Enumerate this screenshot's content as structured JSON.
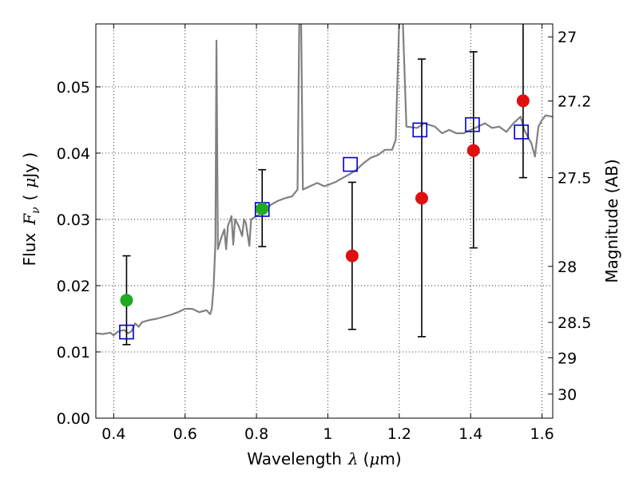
{
  "chart_data": {
    "type": "scatter",
    "xlabel": {
      "prefix": "Wavelength",
      "sym": "λ",
      "unit_open": "(",
      "unit_mu": "μ",
      "unit_rest": "m)"
    },
    "ylabel": {
      "prefix": "Flux",
      "sym": "F",
      "sub": "ν",
      "unit_open": "(",
      "unit_mu": "μ",
      "unit_rest": "Jy )"
    },
    "y2label": "Magnitude (AB)",
    "xlim": [
      0.35,
      1.63
    ],
    "ylim": [
      0.0,
      0.0595
    ],
    "grid": true,
    "xticks": [
      {
        "v": 0.4,
        "label": "0.4"
      },
      {
        "v": 0.6,
        "label": "0.6"
      },
      {
        "v": 0.8,
        "label": "0.8"
      },
      {
        "v": 1.0,
        "label": "1"
      },
      {
        "v": 1.2,
        "label": "1.2"
      },
      {
        "v": 1.4,
        "label": "1.4"
      },
      {
        "v": 1.6,
        "label": "1.6"
      }
    ],
    "yticks": [
      {
        "v": 0.0,
        "label": "0.00"
      },
      {
        "v": 0.01,
        "label": "0.01"
      },
      {
        "v": 0.02,
        "label": "0.02"
      },
      {
        "v": 0.03,
        "label": "0.03"
      },
      {
        "v": 0.04,
        "label": "0.04"
      },
      {
        "v": 0.05,
        "label": "0.05"
      }
    ],
    "y2ticks": [
      {
        "mag": 27,
        "label": "27"
      },
      {
        "mag": 27.2,
        "label": "27.2"
      },
      {
        "mag": 27.5,
        "label": "27.5"
      },
      {
        "mag": 28,
        "label": "28"
      },
      {
        "mag": 28.5,
        "label": "28.5"
      },
      {
        "mag": 29,
        "label": "29"
      },
      {
        "mag": 30,
        "label": "30"
      }
    ],
    "model_sed": [
      [
        0.35,
        0.0128
      ],
      [
        0.37,
        0.0127
      ],
      [
        0.39,
        0.0129
      ],
      [
        0.4,
        0.0125
      ],
      [
        0.41,
        0.013
      ],
      [
        0.42,
        0.0132
      ],
      [
        0.43,
        0.0133
      ],
      [
        0.44,
        0.0128
      ],
      [
        0.45,
        0.0131
      ],
      [
        0.46,
        0.0143
      ],
      [
        0.47,
        0.0138
      ],
      [
        0.48,
        0.0145
      ],
      [
        0.5,
        0.0148
      ],
      [
        0.52,
        0.015
      ],
      [
        0.54,
        0.0153
      ],
      [
        0.56,
        0.0156
      ],
      [
        0.58,
        0.016
      ],
      [
        0.6,
        0.0165
      ],
      [
        0.62,
        0.0165
      ],
      [
        0.64,
        0.016
      ],
      [
        0.66,
        0.0163
      ],
      [
        0.67,
        0.0157
      ],
      [
        0.675,
        0.0165
      ],
      [
        0.68,
        0.02
      ],
      [
        0.685,
        0.0265
      ],
      [
        0.688,
        0.057
      ],
      [
        0.692,
        0.0255
      ],
      [
        0.7,
        0.027
      ],
      [
        0.71,
        0.0285
      ],
      [
        0.715,
        0.0255
      ],
      [
        0.72,
        0.029
      ],
      [
        0.73,
        0.0305
      ],
      [
        0.735,
        0.0262
      ],
      [
        0.74,
        0.03
      ],
      [
        0.75,
        0.029
      ],
      [
        0.76,
        0.0275
      ],
      [
        0.765,
        0.03
      ],
      [
        0.77,
        0.0295
      ],
      [
        0.78,
        0.026
      ],
      [
        0.785,
        0.03
      ],
      [
        0.8,
        0.0305
      ],
      [
        0.82,
        0.0312
      ],
      [
        0.84,
        0.0322
      ],
      [
        0.86,
        0.0328
      ],
      [
        0.88,
        0.0332
      ],
      [
        0.9,
        0.0335
      ],
      [
        0.915,
        0.0345
      ],
      [
        0.92,
        0.06
      ],
      [
        0.925,
        0.06
      ],
      [
        0.93,
        0.0345
      ],
      [
        0.95,
        0.035
      ],
      [
        0.97,
        0.0355
      ],
      [
        0.99,
        0.035
      ],
      [
        1.0,
        0.0352
      ],
      [
        1.02,
        0.0356
      ],
      [
        1.04,
        0.0362
      ],
      [
        1.06,
        0.0368
      ],
      [
        1.08,
        0.0375
      ],
      [
        1.1,
        0.0385
      ],
      [
        1.12,
        0.0393
      ],
      [
        1.14,
        0.0397
      ],
      [
        1.16,
        0.0405
      ],
      [
        1.18,
        0.0405
      ],
      [
        1.19,
        0.042
      ],
      [
        1.2,
        0.06
      ],
      [
        1.21,
        0.06
      ],
      [
        1.22,
        0.044
      ],
      [
        1.25,
        0.0438
      ],
      [
        1.27,
        0.0445
      ],
      [
        1.3,
        0.044
      ],
      [
        1.32,
        0.043
      ],
      [
        1.34,
        0.0435
      ],
      [
        1.36,
        0.043
      ],
      [
        1.38,
        0.043
      ],
      [
        1.4,
        0.0435
      ],
      [
        1.42,
        0.044
      ],
      [
        1.44,
        0.0445
      ],
      [
        1.46,
        0.0438
      ],
      [
        1.48,
        0.044
      ],
      [
        1.5,
        0.0432
      ],
      [
        1.52,
        0.0445
      ],
      [
        1.54,
        0.0455
      ],
      [
        1.55,
        0.0435
      ],
      [
        1.56,
        0.0425
      ],
      [
        1.57,
        0.0415
      ],
      [
        1.58,
        0.0395
      ],
      [
        1.59,
        0.044
      ],
      [
        1.6,
        0.045
      ],
      [
        1.61,
        0.0457
      ],
      [
        1.63,
        0.0455
      ]
    ],
    "series": [
      {
        "marker": "square-open",
        "color": "#0000cc",
        "points": [
          [
            0.436,
            0.013
          ],
          [
            0.816,
            0.0315
          ],
          [
            1.063,
            0.0383
          ],
          [
            1.258,
            0.0435
          ],
          [
            1.405,
            0.0443
          ],
          [
            1.542,
            0.0432
          ]
        ]
      },
      {
        "marker": "circle",
        "color": "#22aa22",
        "points": [
          [
            0.436,
            0.0178,
            0.0111,
            0.0245
          ],
          [
            0.816,
            0.0316,
            0.0259,
            0.0375
          ]
        ]
      },
      {
        "marker": "circle",
        "color": "#e01010",
        "points": [
          [
            1.068,
            0.0245,
            0.0134,
            0.0356
          ],
          [
            1.263,
            0.0332,
            0.0123,
            0.0542
          ],
          [
            1.408,
            0.0404,
            0.0257,
            0.0553
          ],
          [
            1.547,
            0.0479,
            0.0363,
            0.0596
          ]
        ]
      }
    ],
    "colors": {
      "model": "#808080",
      "grid": "#000000",
      "errorbar": "#000000"
    }
  }
}
